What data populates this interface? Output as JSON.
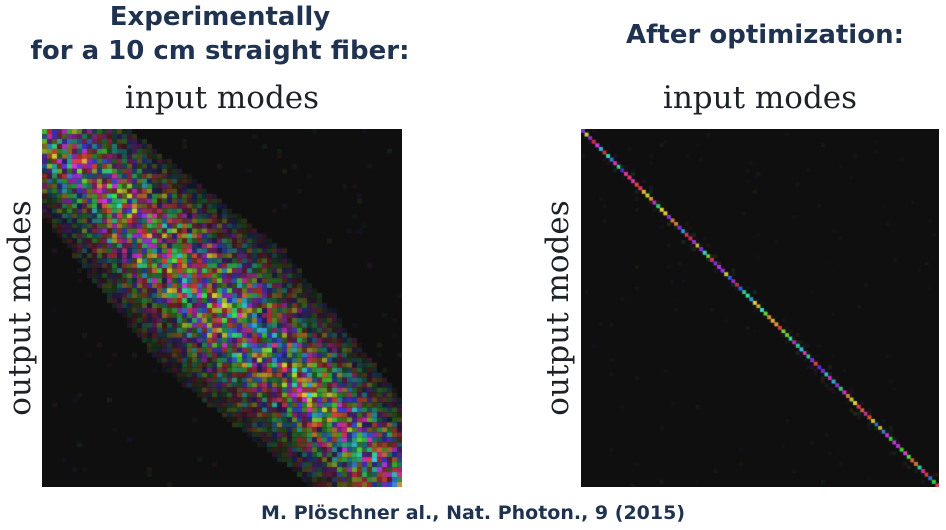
{
  "left_panel": {
    "title_line1": "Experimentally",
    "title_line2": "for a 10 cm straight fiber:",
    "xlabel": "input modes",
    "ylabel": "output modes"
  },
  "right_panel": {
    "title": "After optimization:",
    "xlabel": "input modes",
    "ylabel": "output modes"
  },
  "citation": "M. Plöschner al., Nat. Photon., 9 (2015)",
  "colors": {
    "title": "#1f3350",
    "label": "#1e2226",
    "matrix_background": "#0f0f10"
  }
}
